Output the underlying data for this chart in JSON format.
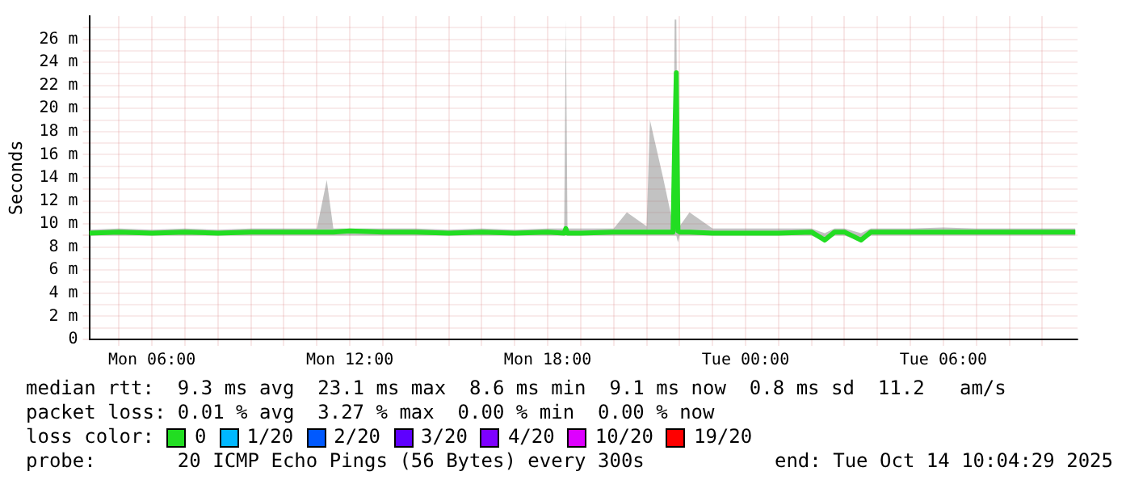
{
  "chart_data": {
    "type": "line",
    "ylabel": "Seconds",
    "xlim": [
      "2025-10-13T04:06",
      "2025-10-14T10:04"
    ],
    "ylim": [
      0,
      28
    ],
    "xticks": [
      {
        "value": "2025-10-13T05:00",
        "label": null
      },
      {
        "value": "2025-10-13T06:00",
        "label": "Mon 06:00"
      },
      {
        "value": "2025-10-13T07:00",
        "label": null
      },
      {
        "value": "2025-10-13T08:00",
        "label": null
      },
      {
        "value": "2025-10-13T09:00",
        "label": null
      },
      {
        "value": "2025-10-13T10:00",
        "label": null
      },
      {
        "value": "2025-10-13T11:00",
        "label": null
      },
      {
        "value": "2025-10-13T12:00",
        "label": "Mon 12:00"
      },
      {
        "value": "2025-10-13T13:00",
        "label": null
      },
      {
        "value": "2025-10-13T14:00",
        "label": null
      },
      {
        "value": "2025-10-13T15:00",
        "label": null
      },
      {
        "value": "2025-10-13T16:00",
        "label": null
      },
      {
        "value": "2025-10-13T17:00",
        "label": null
      },
      {
        "value": "2025-10-13T18:00",
        "label": "Mon 18:00"
      },
      {
        "value": "2025-10-13T19:00",
        "label": null
      },
      {
        "value": "2025-10-13T20:00",
        "label": null
      },
      {
        "value": "2025-10-13T21:00",
        "label": null
      },
      {
        "value": "2025-10-13T22:00",
        "label": null
      },
      {
        "value": "2025-10-13T23:00",
        "label": null
      },
      {
        "value": "2025-10-14T00:00",
        "label": "Tue 00:00"
      },
      {
        "value": "2025-10-14T01:00",
        "label": null
      },
      {
        "value": "2025-10-14T02:00",
        "label": null
      },
      {
        "value": "2025-10-14T03:00",
        "label": null
      },
      {
        "value": "2025-10-14T04:00",
        "label": null
      },
      {
        "value": "2025-10-14T05:00",
        "label": null
      },
      {
        "value": "2025-10-14T06:00",
        "label": "Tue 06:00"
      },
      {
        "value": "2025-10-14T07:00",
        "label": null
      },
      {
        "value": "2025-10-14T08:00",
        "label": null
      },
      {
        "value": "2025-10-14T09:00",
        "label": null
      }
    ],
    "yticks": [
      {
        "value": 0,
        "label": "0"
      },
      {
        "value": 1,
        "label": null
      },
      {
        "value": 2,
        "label": "2 m"
      },
      {
        "value": 3,
        "label": null
      },
      {
        "value": 4,
        "label": "4 m"
      },
      {
        "value": 5,
        "label": null
      },
      {
        "value": 6,
        "label": "6 m"
      },
      {
        "value": 7,
        "label": null
      },
      {
        "value": 8,
        "label": "8 m"
      },
      {
        "value": 9,
        "label": null
      },
      {
        "value": 10,
        "label": "10 m"
      },
      {
        "value": 11,
        "label": null
      },
      {
        "value": 12,
        "label": "12 m"
      },
      {
        "value": 13,
        "label": null
      },
      {
        "value": 14,
        "label": "14 m"
      },
      {
        "value": 15,
        "label": null
      },
      {
        "value": 16,
        "label": "16 m"
      },
      {
        "value": 17,
        "label": null
      },
      {
        "value": 18,
        "label": "18 m"
      },
      {
        "value": 19,
        "label": null
      },
      {
        "value": 20,
        "label": "20 m"
      },
      {
        "value": 21,
        "label": null
      },
      {
        "value": 22,
        "label": "22 m"
      },
      {
        "value": 23,
        "label": null
      },
      {
        "value": 24,
        "label": "24 m"
      },
      {
        "value": 25,
        "label": null
      },
      {
        "value": 26,
        "label": "26 m"
      },
      {
        "value": 27,
        "label": null
      }
    ],
    "grid": true,
    "legend": "bottom",
    "legend_title": "loss color:",
    "marker": "none",
    "line_style": "solid",
    "x": [
      "2025-10-13T04:06",
      "2025-10-13T05:00",
      "2025-10-13T06:00",
      "2025-10-13T07:00",
      "2025-10-13T08:00",
      "2025-10-13T09:00",
      "2025-10-13T10:00",
      "2025-10-13T11:00",
      "2025-10-13T11:18",
      "2025-10-13T11:30",
      "2025-10-13T12:00",
      "2025-10-13T13:00",
      "2025-10-13T14:00",
      "2025-10-13T15:00",
      "2025-10-13T16:00",
      "2025-10-13T17:00",
      "2025-10-13T18:00",
      "2025-10-13T18:30",
      "2025-10-13T18:33",
      "2025-10-13T18:36",
      "2025-10-13T19:00",
      "2025-10-13T20:00",
      "2025-10-13T20:24",
      "2025-10-13T21:00",
      "2025-10-13T21:06",
      "2025-10-13T21:30",
      "2025-10-13T21:48",
      "2025-10-13T21:51",
      "2025-10-13T21:54",
      "2025-10-13T21:57",
      "2025-10-13T22:00",
      "2025-10-13T22:18",
      "2025-10-13T23:00",
      "2025-10-14T00:00",
      "2025-10-14T01:00",
      "2025-10-14T02:00",
      "2025-10-14T02:24",
      "2025-10-14T02:42",
      "2025-10-14T03:00",
      "2025-10-14T03:30",
      "2025-10-14T03:48",
      "2025-10-14T04:00",
      "2025-10-14T05:00",
      "2025-10-14T06:00",
      "2025-10-14T07:00",
      "2025-10-14T08:00",
      "2025-10-14T09:00",
      "2025-10-14T10:00"
    ],
    "series": [
      {
        "name": "0",
        "color": "#22dd22",
        "values": [
          9.2,
          9.3,
          9.2,
          9.3,
          9.2,
          9.3,
          9.3,
          9.3,
          9.3,
          9.3,
          9.4,
          9.3,
          9.3,
          9.2,
          9.3,
          9.2,
          9.3,
          9.2,
          9.6,
          9.2,
          9.2,
          9.3,
          9.3,
          9.3,
          9.3,
          9.3,
          9.3,
          17,
          23.1,
          9.4,
          9.3,
          9.3,
          9.2,
          9.2,
          9.2,
          9.3,
          8.6,
          9.3,
          9.3,
          8.6,
          9.3,
          9.3,
          9.3,
          9.3,
          9.3,
          9.3,
          9.3,
          9.3
        ],
        "lower": [
          9,
          9,
          9,
          9,
          9,
          9,
          9,
          9,
          9,
          9,
          9,
          9,
          9,
          9,
          9,
          9,
          9,
          9,
          9,
          9,
          9,
          9,
          9,
          9,
          9,
          9,
          9,
          9,
          9,
          8.4,
          9,
          9,
          9,
          9,
          9,
          9,
          8.5,
          9,
          9,
          8.5,
          9,
          9,
          9,
          9,
          9,
          9,
          9,
          9
        ],
        "upper": [
          9.5,
          9.6,
          9.5,
          9.6,
          9.5,
          9.6,
          9.6,
          9.6,
          13.8,
          9.6,
          9.6,
          9.6,
          9.6,
          9.5,
          9.6,
          9.5,
          9.6,
          9.6,
          27.7,
          9.6,
          9.6,
          9.6,
          11,
          9.8,
          19,
          14,
          10,
          27.7,
          27.7,
          10,
          9.8,
          11,
          9.6,
          9.6,
          9.6,
          9.6,
          9.2,
          9.6,
          9.6,
          9.2,
          9.6,
          9.6,
          9.6,
          9.7,
          9.6,
          9.6,
          9.6,
          9.6
        ]
      },
      {
        "name": "1/20",
        "color": "#00b8ff",
        "values": [
          null,
          null,
          null,
          null,
          null,
          null,
          null,
          null,
          null,
          null,
          null,
          null,
          null,
          null,
          null,
          null,
          null,
          null,
          null,
          null,
          null,
          null,
          null,
          null,
          null,
          null,
          null,
          null,
          null,
          null,
          null,
          null,
          null,
          null,
          null,
          null,
          null,
          null,
          null,
          null,
          null,
          null,
          null,
          null,
          null,
          null,
          null,
          null
        ]
      },
      {
        "name": "2/20",
        "color": "#0059ff",
        "values": [
          null,
          null,
          null,
          null,
          null,
          null,
          null,
          null,
          null,
          null,
          null,
          null,
          null,
          null,
          null,
          null,
          null,
          null,
          null,
          null,
          null,
          null,
          null,
          null,
          null,
          null,
          null,
          null,
          null,
          null,
          null,
          null,
          null,
          null,
          null,
          null,
          null,
          null,
          null,
          null,
          null,
          null,
          null,
          null,
          null,
          null,
          null,
          null
        ]
      },
      {
        "name": "3/20",
        "color": "#5e00ff",
        "values": [
          null,
          null,
          null,
          null,
          null,
          null,
          null,
          null,
          null,
          null,
          null,
          null,
          null,
          null,
          null,
          null,
          null,
          null,
          null,
          null,
          null,
          null,
          null,
          null,
          null,
          null,
          null,
          null,
          null,
          null,
          null,
          null,
          null,
          null,
          null,
          null,
          null,
          null,
          null,
          null,
          null,
          null,
          null,
          null,
          null,
          null,
          null,
          null
        ]
      },
      {
        "name": "4/20",
        "color": "#7e00ff",
        "values": [
          null,
          null,
          null,
          null,
          null,
          null,
          null,
          null,
          null,
          null,
          null,
          null,
          null,
          null,
          null,
          null,
          null,
          null,
          null,
          null,
          null,
          null,
          null,
          null,
          null,
          null,
          null,
          null,
          null,
          null,
          null,
          null,
          null,
          null,
          null,
          null,
          null,
          null,
          null,
          null,
          null,
          null,
          null,
          null,
          null,
          null,
          null,
          null
        ]
      },
      {
        "name": "10/20",
        "color": "#dd00ff",
        "values": [
          null,
          null,
          null,
          null,
          null,
          null,
          null,
          null,
          null,
          null,
          null,
          null,
          null,
          null,
          null,
          null,
          null,
          null,
          null,
          null,
          null,
          null,
          null,
          null,
          null,
          null,
          null,
          null,
          null,
          null,
          null,
          null,
          null,
          null,
          null,
          null,
          null,
          null,
          null,
          null,
          null,
          null,
          null,
          null,
          null,
          null,
          null,
          null
        ]
      },
      {
        "name": "19/20",
        "color": "#ff0000",
        "values": [
          null,
          null,
          null,
          null,
          null,
          null,
          null,
          null,
          null,
          null,
          null,
          null,
          null,
          null,
          null,
          null,
          null,
          null,
          null,
          null,
          null,
          null,
          null,
          null,
          null,
          null,
          null,
          null,
          null,
          null,
          null,
          null,
          null,
          null,
          null,
          null,
          null,
          null,
          null,
          null,
          null,
          null,
          null,
          null,
          null,
          null,
          null,
          null
        ]
      }
    ],
    "annotations": [
      "median rtt:  9.3 ms avg  23.1 ms max  8.6 ms min  9.1 ms now  0.8 ms sd  11.2   am/s",
      "packet loss: 0.01 % avg  3.27 % max  0.00 % min  0.00 % now",
      "probe:       20 ICMP Echo Pings (56 Bytes) every 300s",
      "end: Tue Oct 14 10:04:29 2025"
    ]
  }
}
